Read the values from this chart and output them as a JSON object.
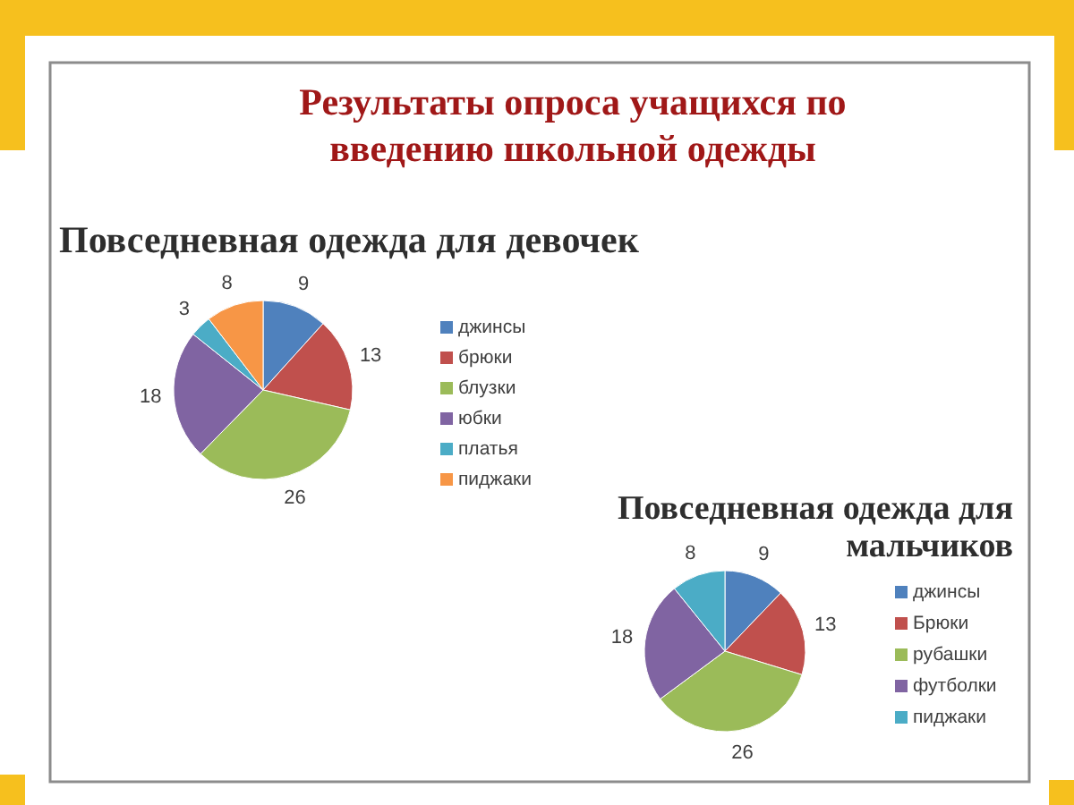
{
  "chart_data": [
    {
      "type": "pie",
      "title": "Результаты опроса учащихся по введению школьной одежды",
      "subtitle": "Повседневная одежда для девочек",
      "categories": [
        "джинсы",
        "брюки",
        "блузки",
        "юбки",
        "платья",
        "пиджаки"
      ],
      "values": [
        9,
        13,
        26,
        18,
        3,
        8
      ],
      "colors": [
        "#4f81bd",
        "#c0504d",
        "#9bbb59",
        "#8064a2",
        "#4bacc6",
        "#f79646"
      ],
      "data_labels": true,
      "legend": "right"
    },
    {
      "type": "pie",
      "title": "Повседневная одежда для мальчиков",
      "categories": [
        "джинсы",
        "Брюки",
        "рубашки",
        "футболки",
        "пиджаки"
      ],
      "values": [
        9,
        13,
        26,
        18,
        8
      ],
      "colors": [
        "#4f81bd",
        "#c0504d",
        "#9bbb59",
        "#8064a2",
        "#4bacc6"
      ],
      "data_labels": true,
      "legend": "right"
    }
  ]
}
